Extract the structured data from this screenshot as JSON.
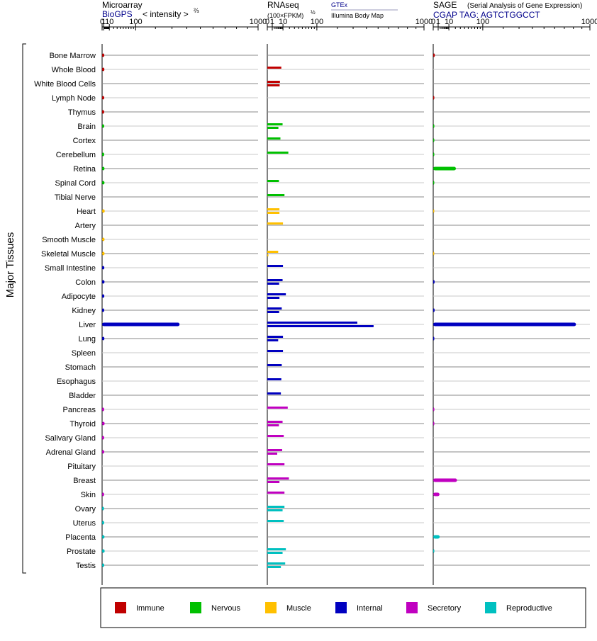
{
  "panels": {
    "microarray": {
      "title": "Microarray",
      "source": "BioGPS",
      "scale_label": "< intensity >",
      "scale_exp": "⅔",
      "ticks": [
        "0",
        "1",
        "10",
        "100",
        "1000"
      ]
    },
    "rnaseq": {
      "title": "RNAseq",
      "scale_label": "(100×FPKM)",
      "scale_exp": "½",
      "source_link": "GTEx",
      "source_sub": "Illumina Body Map",
      "ticks": [
        "0",
        "1",
        "10",
        "100",
        "1000"
      ]
    },
    "sage": {
      "title": "SAGE",
      "subtitle": "(Serial Analysis of Gene Expression)",
      "source": "CGAP TAG: AGTCTGGCCT",
      "ticks": [
        "0",
        "1",
        "10",
        "100",
        "1000"
      ]
    }
  },
  "ylabel": "Major Tissues",
  "legend": [
    {
      "label": "Immune",
      "color": "#c00000"
    },
    {
      "label": "Nervous",
      "color": "#00c000"
    },
    {
      "label": "Muscle",
      "color": "#ffc000"
    },
    {
      "label": "Internal",
      "color": "#0000c0"
    },
    {
      "label": "Secretory",
      "color": "#c000c0"
    },
    {
      "label": "Reproductive",
      "color": "#00c0c0"
    }
  ],
  "chart_data": {
    "type": "bar",
    "orientation": "horizontal",
    "scale": "power-transformed, ticks at 0, 1, 10, 100, 1000",
    "xlim": [
      0,
      1000
    ],
    "groups": {
      "Immune": "#c00000",
      "Nervous": "#00c000",
      "Muscle": "#ffc000",
      "Internal": "#0000c0",
      "Secretory": "#c000c0",
      "Reproductive": "#00c0c0"
    },
    "tissues": [
      {
        "name": "Bone Marrow",
        "group": "Immune",
        "microarray": 1.7,
        "rnaseq": [],
        "sage": 0.1
      },
      {
        "name": "Whole Blood",
        "group": "Immune",
        "microarray": 1.8,
        "rnaseq": [
          8.0
        ],
        "sage": null
      },
      {
        "name": "White Blood Cells",
        "group": "Immune",
        "microarray": null,
        "rnaseq": [
          6.5,
          6.2
        ],
        "sage": null
      },
      {
        "name": "Lymph Node",
        "group": "Immune",
        "microarray": 1.6,
        "rnaseq": [],
        "sage": 0.05
      },
      {
        "name": "Thymus",
        "group": "Immune",
        "microarray": 1.5,
        "rnaseq": [],
        "sage": null
      },
      {
        "name": "Brain",
        "group": "Nervous",
        "microarray": 1.6,
        "rnaseq": [
          9.5,
          5.0
        ],
        "sage": 0.05
      },
      {
        "name": "Cortex",
        "group": "Nervous",
        "microarray": null,
        "rnaseq": [
          7.0
        ],
        "sage": 0.03
      },
      {
        "name": "Cerebellum",
        "group": "Nervous",
        "microarray": 1.5,
        "rnaseq": [
          18.0
        ],
        "sage": 0.03
      },
      {
        "name": "Retina",
        "group": "Nervous",
        "microarray": 1.9,
        "rnaseq": [],
        "sage": 21.0
      },
      {
        "name": "Spinal Cord",
        "group": "Nervous",
        "microarray": 1.9,
        "rnaseq": [
          5.5
        ],
        "sage": 0.03
      },
      {
        "name": "Tibial Nerve",
        "group": "Nervous",
        "microarray": null,
        "rnaseq": [
          12.0
        ],
        "sage": null
      },
      {
        "name": "Heart",
        "group": "Muscle",
        "microarray": 2.2,
        "rnaseq": [
          6.0,
          6.0
        ],
        "sage": 0.02
      },
      {
        "name": "Artery",
        "group": "Muscle",
        "microarray": null,
        "rnaseq": [
          10.0
        ],
        "sage": null
      },
      {
        "name": "Smooth Muscle",
        "group": "Muscle",
        "microarray": 2.0,
        "rnaseq": [],
        "sage": null
      },
      {
        "name": "Skeletal Muscle",
        "group": "Muscle",
        "microarray": 2.0,
        "rnaseq": [
          4.8,
          0.05
        ],
        "sage": 0.02
      },
      {
        "name": "Small Intestine",
        "group": "Internal",
        "microarray": 1.7,
        "rnaseq": [
          10.0
        ],
        "sage": null
      },
      {
        "name": "Colon",
        "group": "Internal",
        "microarray": 1.9,
        "rnaseq": [
          9.5,
          5.7
        ],
        "sage": 0.08
      },
      {
        "name": "Adipocyte",
        "group": "Internal",
        "microarray": 1.7,
        "rnaseq": [
          14.0,
          6.0
        ],
        "sage": null
      },
      {
        "name": "Kidney",
        "group": "Internal",
        "microarray": 1.6,
        "rnaseq": [
          8.5,
          5.7
        ],
        "sage": 0.08
      },
      {
        "name": "Liver",
        "group": "Internal",
        "microarray": 350,
        "rnaseq": [
          330,
          460
        ],
        "sage": 830
      },
      {
        "name": "Lung",
        "group": "Internal",
        "microarray": 1.8,
        "rnaseq": [
          10.0,
          4.8
        ],
        "sage": 0.05
      },
      {
        "name": "Spleen",
        "group": "Internal",
        "microarray": null,
        "rnaseq": [
          10.0
        ],
        "sage": null
      },
      {
        "name": "Stomach",
        "group": "Internal",
        "microarray": null,
        "rnaseq": [
          8.5
        ],
        "sage": null
      },
      {
        "name": "Esophagus",
        "group": "Internal",
        "microarray": null,
        "rnaseq": [
          8.0
        ],
        "sage": null
      },
      {
        "name": "Bladder",
        "group": "Internal",
        "microarray": null,
        "rnaseq": [
          7.5
        ],
        "sage": null
      },
      {
        "name": "Pancreas",
        "group": "Secretory",
        "microarray": 1.5,
        "rnaseq": [
          17.0
        ],
        "sage": 0.05
      },
      {
        "name": "Thyroid",
        "group": "Secretory",
        "microarray": 2.1,
        "rnaseq": [
          9.5,
          5.5
        ],
        "sage": 0.05
      },
      {
        "name": "Salivary Gland",
        "group": "Secretory",
        "microarray": 1.5,
        "rnaseq": [
          11.0
        ],
        "sage": null
      },
      {
        "name": "Adrenal Gland",
        "group": "Secretory",
        "microarray": 1.6,
        "rnaseq": [
          9.0,
          4.0
        ],
        "sage": null
      },
      {
        "name": "Pituitary",
        "group": "Secretory",
        "microarray": null,
        "rnaseq": [
          12.0
        ],
        "sage": null
      },
      {
        "name": "Breast",
        "group": "Secretory",
        "microarray": null,
        "rnaseq": [
          19.0,
          6.0
        ],
        "sage": 23.0
      },
      {
        "name": "Skin",
        "group": "Secretory",
        "microarray": 1.4,
        "rnaseq": [
          12.0
        ],
        "sage": 1.6
      },
      {
        "name": "Ovary",
        "group": "Reproductive",
        "microarray": 1.3,
        "rnaseq": [
          12.0,
          9.5
        ],
        "sage": null
      },
      {
        "name": "Uterus",
        "group": "Reproductive",
        "microarray": 1.5,
        "rnaseq": [
          11.0
        ],
        "sage": null
      },
      {
        "name": "Placenta",
        "group": "Reproductive",
        "microarray": 1.9,
        "rnaseq": [],
        "sage": 1.7
      },
      {
        "name": "Prostate",
        "group": "Reproductive",
        "microarray": 2.1,
        "rnaseq": [
          14.0,
          9.5
        ],
        "sage": 0.05
      },
      {
        "name": "Testis",
        "group": "Reproductive",
        "microarray": 1.6,
        "rnaseq": [
          13.0,
          7.5
        ],
        "sage": null
      }
    ]
  }
}
